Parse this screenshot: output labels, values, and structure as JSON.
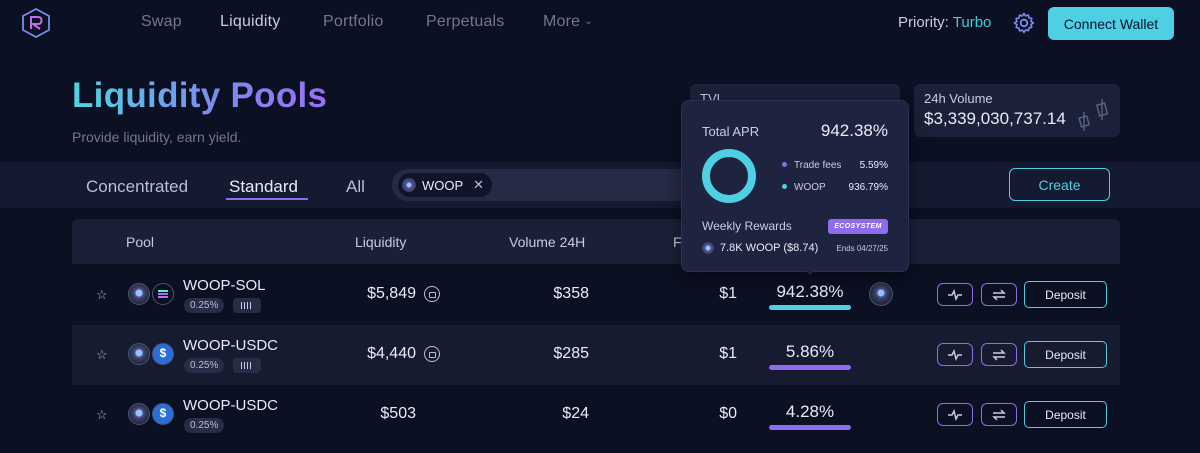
{
  "nav": {
    "items": [
      {
        "label": "Swap",
        "active": false
      },
      {
        "label": "Liquidity",
        "active": true
      },
      {
        "label": "Portfolio",
        "active": false
      },
      {
        "label": "Perpetuals",
        "active": false
      },
      {
        "label": "More",
        "active": false
      }
    ],
    "priority_label": "Priority:",
    "priority_value": "Turbo",
    "connect_label": "Connect Wallet"
  },
  "header": {
    "title": "Liquidity Pools",
    "subtitle": "Provide liquidity, earn yield.",
    "tvl_label": "TVL",
    "volume_label": "24h Volume",
    "volume_value": "$3,339,030,737.14"
  },
  "tabs": [
    "Concentrated",
    "Standard",
    "All"
  ],
  "active_tab": "Standard",
  "search": {
    "chip_label": "WOOP",
    "clear_icon": "close-icon"
  },
  "create_label": "Create",
  "table": {
    "headers": {
      "pool": "Pool",
      "liquidity": "Liquidity",
      "volume": "Volume 24H",
      "fees": "Fe"
    },
    "rows": [
      {
        "pair": "WOOP-SOL",
        "fee_tier": "0.25%",
        "liquidity": "$5,849",
        "volume": "$358",
        "fees": "$1",
        "apr": "942.38%",
        "apr_fill": 1.0,
        "apr_color": "#4ecfe3",
        "second_token": "sol",
        "has_fee_icon": true,
        "has_reward_icon": true
      },
      {
        "pair": "WOOP-USDC",
        "fee_tier": "0.25%",
        "liquidity": "$4,440",
        "volume": "$285",
        "fees": "$1",
        "apr": "5.86%",
        "apr_fill": 1.0,
        "apr_color": "#8d6cf0",
        "second_token": "usdc",
        "has_fee_icon": true,
        "has_reward_icon": false
      },
      {
        "pair": "WOOP-USDC",
        "fee_tier": "0.25%",
        "liquidity": "$503",
        "volume": "$24",
        "fees": "$0",
        "apr": "4.28%",
        "apr_fill": 1.0,
        "apr_color": "#8d6cf0",
        "second_token": "usdc",
        "has_fee_icon": false,
        "has_reward_icon": false
      }
    ],
    "deposit_label": "Deposit"
  },
  "tooltip": {
    "total_apr_label": "Total APR",
    "total_apr_value": "942.38%",
    "breakdown": [
      {
        "label": "Trade fees",
        "value": "5.59%",
        "color": "#8d6cf0"
      },
      {
        "label": "WOOP",
        "value": "936.79%",
        "color": "#4ecfe3"
      }
    ],
    "weekly_rewards_label": "Weekly Rewards",
    "ecosystem_badge": "ECOSYSTEM",
    "reward_amount": "7.8K WOOP ($8.74)",
    "reward_ends": "Ends 04/27/25"
  }
}
